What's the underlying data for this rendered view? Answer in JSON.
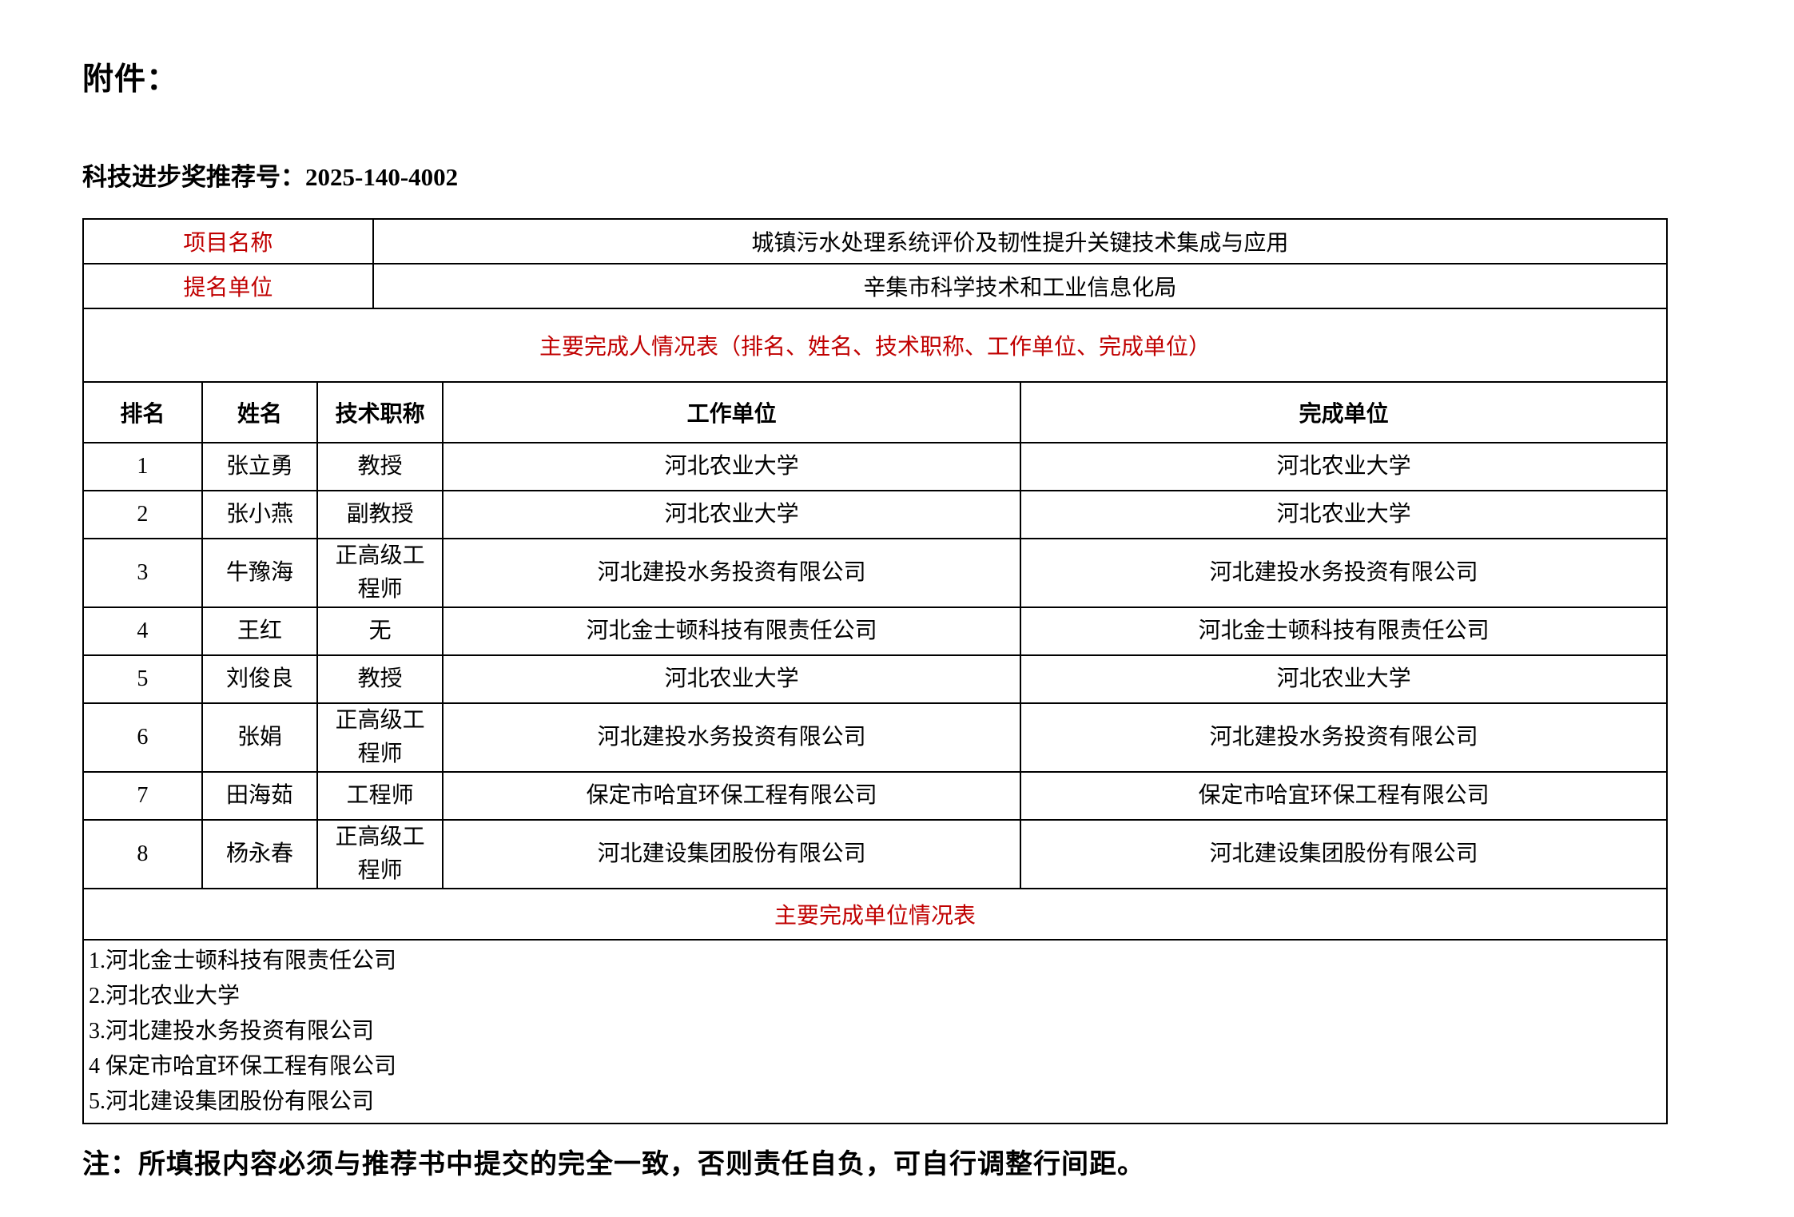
{
  "colors": {
    "accent_red": "#c00000",
    "text": "#000000",
    "border": "#000000",
    "background": "#ffffff"
  },
  "page": {
    "attachment_label": "附件：",
    "recommendation_label": "科技进步奖推荐号：",
    "recommendation_number": "2025-140-4002",
    "note": "注：所填报内容必须与推荐书中提交的完全一致，否则责任自负，可自行调整行间距。"
  },
  "info_table": {
    "project_name_label": "项目名称",
    "project_name": "城镇污水处理系统评价及韧性提升关键技术集成与应用",
    "nominator_label": "提名单位",
    "nominator": "辛集市科学技术和工业信息化局"
  },
  "completers_table": {
    "title": "主要完成人情况表（排名、姓名、技术职称、工作单位、完成单位）",
    "headers": [
      "排名",
      "姓名",
      "技术职称",
      "工作单位",
      "完成单位"
    ],
    "rows": [
      [
        "1",
        "张立勇",
        "教授",
        "河北农业大学",
        "河北农业大学"
      ],
      [
        "2",
        "张小燕",
        "副教授",
        "河北农业大学",
        "河北农业大学"
      ],
      [
        "3",
        "牛豫海",
        "正高级工程师",
        "河北建投水务投资有限公司",
        "河北建投水务投资有限公司"
      ],
      [
        "4",
        "王红",
        "无",
        "河北金士顿科技有限责任公司",
        "河北金士顿科技有限责任公司"
      ],
      [
        "5",
        "刘俊良",
        "教授",
        "河北农业大学",
        "河北农业大学"
      ],
      [
        "6",
        "张娟",
        "正高级工程师",
        "河北建投水务投资有限公司",
        "河北建投水务投资有限公司"
      ],
      [
        "7",
        "田海茹",
        "工程师",
        "保定市哈宜环保工程有限公司",
        "保定市哈宜环保工程有限公司"
      ],
      [
        "8",
        "杨永春",
        "正高级工程师",
        "河北建设集团股份有限公司",
        "河北建设集团股份有限公司"
      ]
    ]
  },
  "units_table": {
    "title": "主要完成单位情况表",
    "units": [
      "1.河北金士顿科技有限责任公司",
      "2.河北农业大学",
      "3.河北建投水务投资有限公司",
      "4 保定市哈宜环保工程有限公司",
      "5.河北建设集团股份有限公司"
    ]
  }
}
